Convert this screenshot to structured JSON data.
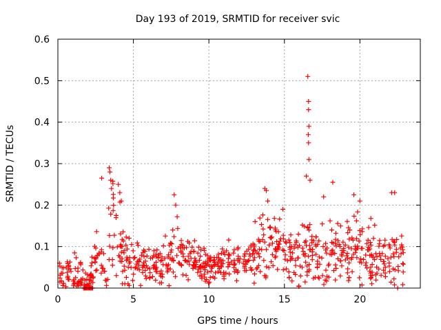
{
  "chart_data": {
    "type": "scatter",
    "title": "Day 193 of 2019, SRMTID for receiver svic",
    "xlabel": "GPS time / hours",
    "ylabel": "SRMTID / TECUs",
    "xlim": [
      0,
      24
    ],
    "ylim": [
      0,
      0.6
    ],
    "xticks": [
      0,
      5,
      10,
      15,
      20
    ],
    "xtick_labels": [
      "0",
      "5",
      "10",
      "15",
      "20"
    ],
    "yticks": [
      0,
      0.1,
      0.2,
      0.3,
      0.4,
      0.5,
      0.6
    ],
    "ytick_labels": [
      "0",
      "0.1",
      "0.2",
      "0.3",
      "0.4",
      "0.5",
      "0.6"
    ],
    "grid": true,
    "marker": "+",
    "color": "#ff0000",
    "series": [
      {
        "name": "SRMTID",
        "profile": [
          {
            "x": 0.0,
            "level": 0.03,
            "spread": 0.04
          },
          {
            "x": 1.0,
            "level": 0.035,
            "spread": 0.05
          },
          {
            "x": 2.0,
            "level": 0.015,
            "spread": 0.02
          },
          {
            "x": 2.5,
            "level": 0.06,
            "spread": 0.06
          },
          {
            "x": 3.0,
            "level": 0.09,
            "spread": 0.09
          },
          {
            "x": 3.5,
            "level": 0.12,
            "spread": 0.13
          },
          {
            "x": 4.0,
            "level": 0.11,
            "spread": 0.11
          },
          {
            "x": 4.5,
            "level": 0.07,
            "spread": 0.05
          },
          {
            "x": 6.0,
            "level": 0.055,
            "spread": 0.04
          },
          {
            "x": 7.0,
            "level": 0.06,
            "spread": 0.05
          },
          {
            "x": 7.8,
            "level": 0.1,
            "spread": 0.09
          },
          {
            "x": 8.5,
            "level": 0.07,
            "spread": 0.05
          },
          {
            "x": 10.0,
            "level": 0.05,
            "spread": 0.035
          },
          {
            "x": 11.0,
            "level": 0.06,
            "spread": 0.04
          },
          {
            "x": 12.5,
            "level": 0.07,
            "spread": 0.05
          },
          {
            "x": 13.5,
            "level": 0.1,
            "spread": 0.08
          },
          {
            "x": 14.5,
            "level": 0.11,
            "spread": 0.08
          },
          {
            "x": 15.5,
            "level": 0.07,
            "spread": 0.06
          },
          {
            "x": 16.5,
            "level": 0.1,
            "spread": 0.1
          },
          {
            "x": 17.5,
            "level": 0.07,
            "spread": 0.07
          },
          {
            "x": 18.5,
            "level": 0.08,
            "spread": 0.07
          },
          {
            "x": 19.5,
            "level": 0.09,
            "spread": 0.07
          },
          {
            "x": 20.5,
            "level": 0.09,
            "spread": 0.07
          },
          {
            "x": 21.5,
            "level": 0.06,
            "spread": 0.06
          },
          {
            "x": 22.5,
            "level": 0.08,
            "spread": 0.07
          },
          {
            "x": 22.9,
            "level": 0.06,
            "spread": 0.05
          }
        ],
        "sample_count": 820,
        "x_range": [
          0.0,
          22.9
        ],
        "notable_points": [
          {
            "x": 16.55,
            "y": 0.51
          },
          {
            "x": 16.6,
            "y": 0.45
          },
          {
            "x": 16.6,
            "y": 0.43
          },
          {
            "x": 16.62,
            "y": 0.39
          },
          {
            "x": 16.58,
            "y": 0.37
          },
          {
            "x": 16.6,
            "y": 0.35
          },
          {
            "x": 16.62,
            "y": 0.31
          },
          {
            "x": 16.45,
            "y": 0.27
          },
          {
            "x": 16.7,
            "y": 0.26
          },
          {
            "x": 3.4,
            "y": 0.29
          },
          {
            "x": 3.45,
            "y": 0.28
          },
          {
            "x": 3.5,
            "y": 0.26
          },
          {
            "x": 3.55,
            "y": 0.24
          },
          {
            "x": 2.9,
            "y": 0.265
          },
          {
            "x": 4.0,
            "y": 0.25
          },
          {
            "x": 4.1,
            "y": 0.23
          },
          {
            "x": 4.2,
            "y": 0.21
          },
          {
            "x": 7.7,
            "y": 0.225
          },
          {
            "x": 7.8,
            "y": 0.2
          },
          {
            "x": 13.7,
            "y": 0.24
          },
          {
            "x": 13.8,
            "y": 0.235
          },
          {
            "x": 13.9,
            "y": 0.21
          },
          {
            "x": 14.9,
            "y": 0.19
          },
          {
            "x": 18.2,
            "y": 0.255
          },
          {
            "x": 17.6,
            "y": 0.22
          },
          {
            "x": 19.6,
            "y": 0.225
          },
          {
            "x": 20.0,
            "y": 0.21
          },
          {
            "x": 22.1,
            "y": 0.23
          },
          {
            "x": 22.3,
            "y": 0.23
          }
        ],
        "zero_cluster": {
          "x_from": 1.7,
          "x_to": 2.3,
          "y": 0.0
        },
        "zero_point": {
          "x": 22.5,
          "y": 0.0
        }
      }
    ]
  }
}
